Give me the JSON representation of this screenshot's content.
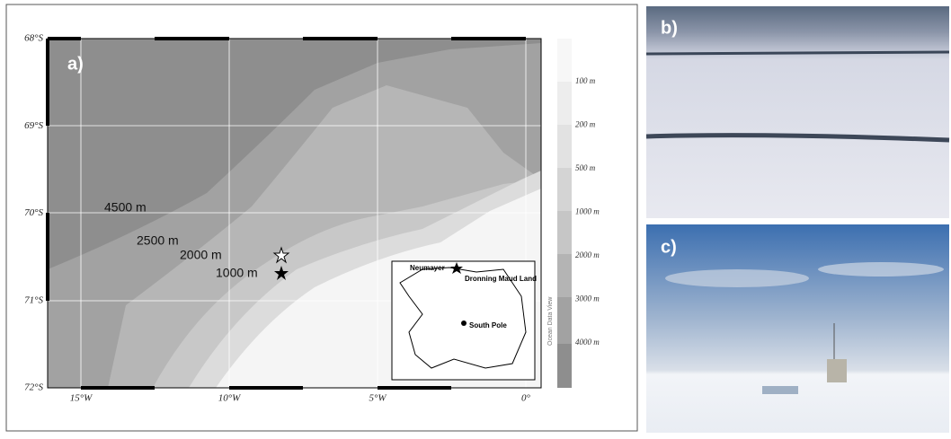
{
  "panels": {
    "a": "a)",
    "b": "b)",
    "c": "c)"
  },
  "map": {
    "lat_labels": [
      "68°S",
      "69°S",
      "70°S",
      "71°S",
      "72°S"
    ],
    "lon_labels": [
      "15°W",
      "10°W",
      "5°W",
      "0°"
    ],
    "depth_labels": [
      "4500 m",
      "2500 m",
      "2000 m",
      "1000 m"
    ],
    "colorbar_labels": [
      "100 m",
      "200 m",
      "500 m",
      "1000 m",
      "2000 m",
      "3000 m",
      "4000 m"
    ],
    "credit": "Ocean Data View",
    "inset": {
      "station": "Neumayer",
      "region": "Dronning Maud Land",
      "pole": "South Pole"
    }
  }
}
